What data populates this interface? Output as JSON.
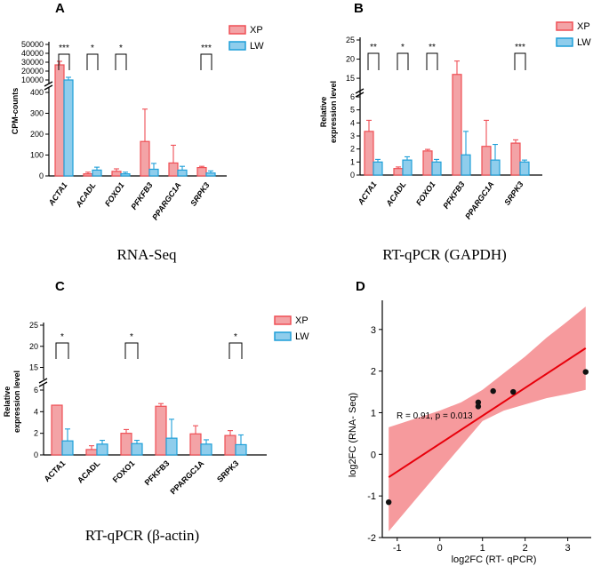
{
  "colors": {
    "xp": "#ef4f55",
    "xp_fill": "#f3a3a6",
    "lw": "#1f9fd8",
    "lw_fill": "#8fcdec",
    "fit": "#e8000b",
    "band": "#f5888c"
  },
  "chart_data": [
    {
      "id": "A",
      "letter": "A",
      "type": "bar",
      "caption": "RNA-Seq",
      "ylabel": "CPM-counts",
      "categories": [
        "ACTA1",
        "ACADL",
        "FOXO1",
        "PFKFB3",
        "PPARGC1A",
        "SRPK3"
      ],
      "series": [
        {
          "name": "XP",
          "values": [
            27000,
            10,
            22,
            165,
            62,
            40
          ],
          "errors": [
            4000,
            8,
            12,
            155,
            85,
            6
          ]
        },
        {
          "name": "LW",
          "values": [
            10000,
            28,
            10,
            32,
            28,
            14
          ],
          "errors": [
            3000,
            14,
            8,
            28,
            18,
            10
          ]
        }
      ],
      "significance": [
        "***",
        "*",
        "*",
        "",
        "",
        "***"
      ],
      "axis_low": {
        "range": [
          0,
          400
        ],
        "ticks": [
          "0",
          "100",
          "200",
          "300",
          "400"
        ]
      },
      "axis_high": {
        "range": [
          10000,
          50000
        ],
        "ticks": [
          "10000",
          "20000",
          "30000",
          "40000",
          "50000"
        ]
      }
    },
    {
      "id": "B",
      "letter": "B",
      "type": "bar",
      "caption": "RT-qPCR (GAPDH)",
      "ylabel": "Relative expression level",
      "categories": [
        "ACTA1",
        "ACADL",
        "FOXO1",
        "PFKFB3",
        "PPARGC1A",
        "SRPK3"
      ],
      "series": [
        {
          "name": "XP",
          "values": [
            3.35,
            0.5,
            1.85,
            16,
            2.2,
            2.45
          ],
          "errors": [
            0.85,
            0.12,
            0.12,
            3.5,
            2.0,
            0.25
          ]
        },
        {
          "name": "LW",
          "values": [
            1.0,
            1.15,
            1.0,
            1.55,
            1.15,
            1.0
          ],
          "errors": [
            0.2,
            0.25,
            0.2,
            1.8,
            1.2,
            0.15
          ]
        }
      ],
      "significance": [
        "**",
        "*",
        "**",
        "",
        "",
        "***"
      ],
      "axis_low": {
        "range": [
          0,
          6
        ],
        "ticks": [
          "0",
          "1",
          "2",
          "3",
          "4",
          "5",
          "6"
        ]
      },
      "axis_high": {
        "range": [
          12,
          25
        ],
        "ticks": [
          "15",
          "20",
          "25"
        ]
      }
    },
    {
      "id": "C",
      "letter": "C",
      "type": "bar",
      "caption": "RT-qPCR (β-actin)",
      "ylabel": "Relative expression level",
      "categories": [
        "ACTA1",
        "ACADL",
        "FOXO1",
        "PFKFB3",
        "PPARGC1A",
        "SRPK3"
      ],
      "series": [
        {
          "name": "XP",
          "values": [
            4.6,
            0.5,
            2.0,
            4.5,
            1.95,
            1.8
          ],
          "errors": [
            1.45,
            0.35,
            0.35,
            0.25,
            0.75,
            0.45
          ]
        },
        {
          "name": "LW",
          "values": [
            1.3,
            1.0,
            1.05,
            1.55,
            1.0,
            0.95
          ],
          "errors": [
            1.1,
            0.35,
            0.3,
            1.75,
            0.4,
            0.9
          ]
        }
      ],
      "significance": [
        "*",
        "",
        "*",
        "",
        "",
        "*"
      ],
      "axis_low": {
        "range": [
          0,
          6
        ],
        "ticks": [
          "0",
          "2",
          "4",
          "6"
        ]
      },
      "axis_high": {
        "range": [
          13,
          25
        ],
        "ticks": [
          "15",
          "20",
          "25"
        ]
      }
    },
    {
      "id": "D",
      "letter": "D",
      "type": "scatter",
      "xlabel": "log2FC (RT- qPCR)",
      "ylabel": "log2FC (RNA- Seq)",
      "xlim": [
        -1.35,
        3.55
      ],
      "ylim": [
        -2,
        3.7
      ],
      "xticks": [
        -1,
        0,
        1,
        2,
        3
      ],
      "yticks": [
        -2,
        -1,
        0,
        1,
        2,
        3
      ],
      "annotation": "R = 0.91, p = 0.013",
      "points": [
        {
          "x": -1.2,
          "y": -1.15
        },
        {
          "x": 0.9,
          "y": 1.25
        },
        {
          "x": 0.9,
          "y": 1.15
        },
        {
          "x": 1.25,
          "y": 1.52
        },
        {
          "x": 1.72,
          "y": 1.5
        },
        {
          "x": 3.42,
          "y": 1.98
        }
      ],
      "fit": {
        "x0": -1.2,
        "y0": -0.55,
        "x1": 3.42,
        "y1": 2.55
      },
      "band_upper": [
        [
          -1.2,
          0.65
        ],
        [
          0,
          1.05
        ],
        [
          0.5,
          1.25
        ],
        [
          1.0,
          1.55
        ],
        [
          1.5,
          1.95
        ],
        [
          2.0,
          2.35
        ],
        [
          2.5,
          2.8
        ],
        [
          3.0,
          3.2
        ],
        [
          3.42,
          3.55
        ]
      ],
      "band_lower": [
        [
          -1.2,
          -1.85
        ],
        [
          -0.5,
          -1.0
        ],
        [
          0,
          -0.4
        ],
        [
          0.5,
          0.2
        ],
        [
          1.0,
          0.8
        ],
        [
          1.5,
          1.05
        ],
        [
          2.0,
          1.2
        ],
        [
          2.5,
          1.35
        ],
        [
          3.0,
          1.45
        ],
        [
          3.42,
          1.55
        ]
      ]
    }
  ]
}
